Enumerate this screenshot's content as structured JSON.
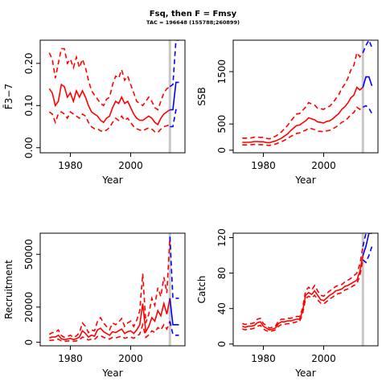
{
  "figure": {
    "title": "Fsq, then F = Fmsy",
    "subtitle": "TAC = 196648 (155788;260899)"
  },
  "colors": {
    "historic": "#ff0000",
    "projection": "#0000ff",
    "marker": "#c8c8c8"
  },
  "chart_data": [
    {
      "id": "fbar",
      "type": "line",
      "xlabel": "Year",
      "ylabel": "F̄3−7",
      "xticks": [
        1980,
        2000
      ],
      "yticks": [
        0.0,
        0.1,
        0.2
      ],
      "ytick_labels": [
        "0.00",
        "0.10",
        "0.20"
      ],
      "xlim": [
        1970,
        2018
      ],
      "ylim": [
        -0.012,
        0.255
      ],
      "projection_start": 2013,
      "hist_x": [
        1973,
        1974,
        1975,
        1976,
        1977,
        1978,
        1979,
        1980,
        1981,
        1982,
        1983,
        1984,
        1985,
        1986,
        1987,
        1988,
        1989,
        1990,
        1991,
        1992,
        1993,
        1994,
        1995,
        1996,
        1997,
        1998,
        1999,
        2000,
        2001,
        2002,
        2003,
        2004,
        2005,
        2006,
        2007,
        2008,
        2009,
        2010,
        2011,
        2012,
        2013
      ],
      "hist_mid": [
        0.14,
        0.13,
        0.1,
        0.11,
        0.15,
        0.145,
        0.12,
        0.13,
        0.11,
        0.135,
        0.12,
        0.135,
        0.12,
        0.1,
        0.085,
        0.08,
        0.075,
        0.065,
        0.06,
        0.07,
        0.075,
        0.095,
        0.11,
        0.105,
        0.12,
        0.105,
        0.11,
        0.095,
        0.08,
        0.07,
        0.065,
        0.065,
        0.07,
        0.075,
        0.07,
        0.06,
        0.055,
        0.07,
        0.08,
        0.085,
        0.09
      ],
      "hist_lo": [
        0.085,
        0.08,
        0.06,
        0.08,
        0.085,
        0.08,
        0.07,
        0.085,
        0.08,
        0.075,
        0.07,
        0.08,
        0.075,
        0.06,
        0.05,
        0.045,
        0.045,
        0.04,
        0.038,
        0.042,
        0.048,
        0.06,
        0.07,
        0.065,
        0.075,
        0.065,
        0.07,
        0.06,
        0.05,
        0.045,
        0.042,
        0.04,
        0.044,
        0.047,
        0.044,
        0.038,
        0.036,
        0.044,
        0.05,
        0.052,
        0.055
      ],
      "hist_hi": [
        0.225,
        0.21,
        0.165,
        0.2,
        0.235,
        0.235,
        0.2,
        0.21,
        0.19,
        0.215,
        0.19,
        0.21,
        0.19,
        0.16,
        0.135,
        0.125,
        0.115,
        0.105,
        0.1,
        0.115,
        0.12,
        0.15,
        0.17,
        0.165,
        0.185,
        0.16,
        0.17,
        0.15,
        0.13,
        0.11,
        0.105,
        0.1,
        0.11,
        0.12,
        0.11,
        0.095,
        0.09,
        0.11,
        0.13,
        0.14,
        0.145
      ],
      "proj_x": [
        2013,
        2014,
        2015,
        2016
      ],
      "proj_mid": [
        0.09,
        0.09,
        0.155,
        0.155
      ],
      "proj_lo": [
        0.05,
        0.05,
        0.09,
        0.09
      ],
      "proj_hi": [
        0.145,
        0.15,
        0.255,
        0.255
      ]
    },
    {
      "id": "ssb",
      "type": "line",
      "xlabel": "Year",
      "ylabel": "SSB",
      "xticks": [
        1980,
        2000
      ],
      "yticks": [
        0,
        500,
        1500
      ],
      "ytick_labels": [
        "0",
        "500",
        "1500"
      ],
      "xlim": [
        1970,
        2018
      ],
      "ylim": [
        -50,
        2100
      ],
      "projection_start": 2013,
      "hist_x": [
        1973,
        1974,
        1975,
        1976,
        1977,
        1978,
        1979,
        1980,
        1981,
        1982,
        1983,
        1984,
        1985,
        1986,
        1987,
        1988,
        1989,
        1990,
        1991,
        1992,
        1993,
        1994,
        1995,
        1996,
        1997,
        1998,
        1999,
        2000,
        2001,
        2002,
        2003,
        2004,
        2005,
        2006,
        2007,
        2008,
        2009,
        2010,
        2011,
        2012,
        2013
      ],
      "hist_mid": [
        150,
        150,
        150,
        155,
        165,
        165,
        160,
        160,
        145,
        140,
        160,
        175,
        200,
        230,
        270,
        310,
        370,
        420,
        470,
        480,
        520,
        560,
        620,
        600,
        580,
        540,
        530,
        520,
        550,
        560,
        600,
        650,
        700,
        780,
        830,
        900,
        1000,
        1050,
        1200,
        1150,
        1200
      ],
      "hist_lo": [
        100,
        100,
        100,
        105,
        110,
        110,
        105,
        105,
        95,
        92,
        105,
        115,
        140,
        160,
        190,
        220,
        260,
        290,
        320,
        330,
        360,
        380,
        420,
        410,
        390,
        360,
        360,
        350,
        370,
        380,
        410,
        440,
        480,
        530,
        560,
        610,
        680,
        720,
        820,
        780,
        820
      ],
      "hist_hi": [
        230,
        230,
        230,
        235,
        250,
        250,
        245,
        245,
        225,
        215,
        245,
        265,
        305,
        350,
        410,
        470,
        550,
        620,
        690,
        700,
        760,
        820,
        910,
        880,
        860,
        800,
        790,
        780,
        820,
        840,
        900,
        980,
        1060,
        1180,
        1260,
        1370,
        1530,
        1620,
        1860,
        1780,
        1860
      ],
      "proj_x": [
        2013,
        2014,
        2015,
        2016
      ],
      "proj_mid": [
        1200,
        1400,
        1400,
        1230
      ],
      "proj_lo": [
        820,
        850,
        800,
        700
      ],
      "proj_hi": [
        1860,
        2000,
        2100,
        1960
      ]
    },
    {
      "id": "recruitment",
      "type": "line",
      "xlabel": "Year",
      "ylabel": "Recruitment",
      "xticks": [
        1980,
        2000
      ],
      "yticks": [
        0,
        20000,
        50000
      ],
      "ytick_labels": [
        "0",
        "20000",
        "50000"
      ],
      "xlim": [
        1970,
        2018
      ],
      "ylim": [
        -2000,
        62000
      ],
      "projection_start": 2013,
      "hist_x": [
        1973,
        1974,
        1975,
        1976,
        1977,
        1978,
        1979,
        1980,
        1981,
        1982,
        1983,
        1984,
        1985,
        1986,
        1987,
        1988,
        1989,
        1990,
        1991,
        1992,
        1993,
        1994,
        1995,
        1996,
        1997,
        1998,
        1999,
        2000,
        2001,
        2002,
        2003,
        2004,
        2005,
        2006,
        2007,
        2008,
        2009,
        2010,
        2011,
        2012,
        2013
      ],
      "hist_mid": [
        2500,
        3000,
        3000,
        4000,
        2000,
        1500,
        1800,
        2200,
        1500,
        2000,
        3000,
        6500,
        5000,
        3000,
        4000,
        3500,
        7000,
        8000,
        6000,
        5000,
        4000,
        6000,
        5500,
        6500,
        7500,
        5000,
        6000,
        6500,
        5000,
        7000,
        10000,
        22000,
        6000,
        9000,
        14000,
        12000,
        18000,
        15000,
        22000,
        16000,
        25000
      ],
      "hist_lo": [
        1000,
        1200,
        1200,
        1800,
        800,
        600,
        700,
        900,
        600,
        800,
        1300,
        3000,
        2300,
        1300,
        1800,
        1500,
        3300,
        3800,
        2800,
        2300,
        1800,
        2800,
        2500,
        3000,
        3500,
        2300,
        2800,
        3000,
        2300,
        3300,
        4700,
        10000,
        2800,
        4200,
        6500,
        5600,
        8400,
        7000,
        10000,
        7500,
        12000
      ],
      "hist_hi": [
        4500,
        5500,
        5500,
        7000,
        3800,
        2800,
        3200,
        4000,
        2800,
        3600,
        5500,
        11000,
        9000,
        5500,
        7000,
        6500,
        12000,
        14000,
        11000,
        9000,
        7200,
        11000,
        10000,
        11500,
        13500,
        9000,
        11000,
        12000,
        9000,
        12500,
        18000,
        39000,
        11000,
        16000,
        25000,
        21000,
        31000,
        26000,
        37000,
        28000,
        60000
      ],
      "proj_x": [
        2013,
        2014,
        2015,
        2016
      ],
      "proj_mid": [
        25000,
        10000,
        10000,
        10000
      ],
      "proj_lo": [
        12000,
        4500,
        4000,
        4000
      ],
      "proj_hi": [
        60000,
        25000,
        25000,
        25000
      ]
    },
    {
      "id": "catch",
      "type": "line",
      "xlabel": "Year",
      "ylabel": "Catch",
      "xticks": [
        1980,
        2000
      ],
      "yticks": [
        0,
        40,
        80,
        120
      ],
      "ytick_labels": [
        "0",
        "40",
        "80",
        "120"
      ],
      "xlim": [
        1970,
        2018
      ],
      "ylim": [
        -2,
        125
      ],
      "projection_start": 2013,
      "hist_x": [
        1973,
        1974,
        1975,
        1976,
        1977,
        1978,
        1979,
        1980,
        1981,
        1982,
        1983,
        1984,
        1985,
        1986,
        1987,
        1988,
        1989,
        1990,
        1991,
        1992,
        1993,
        1994,
        1995,
        1996,
        1997,
        1998,
        1999,
        2000,
        2001,
        2002,
        2003,
        2004,
        2005,
        2006,
        2007,
        2008,
        2009,
        2010,
        2011,
        2012,
        2013
      ],
      "hist_mid": [
        20,
        19,
        20,
        20,
        21,
        24,
        25,
        20,
        18,
        16,
        17,
        18,
        23,
        25,
        25,
        26,
        26,
        27,
        28,
        28,
        37,
        55,
        58,
        56,
        60,
        55,
        50,
        49,
        52,
        55,
        57,
        60,
        61,
        62,
        65,
        66,
        68,
        70,
        72,
        82,
        100
      ],
      "hist_lo": [
        17,
        16,
        17,
        17,
        18,
        20,
        21,
        17,
        15,
        14,
        15,
        16,
        20,
        22,
        22,
        23,
        23,
        24,
        25,
        25,
        34,
        51,
        54,
        52,
        55,
        50,
        46,
        45,
        48,
        51,
        53,
        56,
        57,
        58,
        61,
        62,
        64,
        66,
        68,
        77,
        95
      ],
      "hist_hi": [
        23,
        22,
        23,
        23,
        24,
        28,
        29,
        23,
        21,
        18,
        19,
        20,
        26,
        28,
        28,
        29,
        29,
        30,
        31,
        31,
        40,
        60,
        64,
        61,
        66,
        60,
        55,
        54,
        57,
        60,
        62,
        65,
        66,
        67,
        70,
        72,
        74,
        77,
        80,
        90,
        110
      ],
      "proj_x": [
        2013,
        2014,
        2015,
        2016
      ],
      "proj_mid": [
        100,
        110,
        125,
        125
      ],
      "proj_lo": [
        95,
        92,
        100,
        110
      ],
      "proj_hi": [
        110,
        125,
        125,
        125
      ]
    }
  ]
}
